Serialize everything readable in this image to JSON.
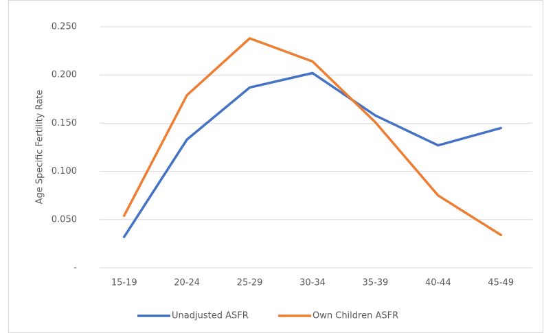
{
  "chart_data": {
    "type": "line",
    "y_label": "Age Specific Fertility Rate",
    "categories": [
      "15-19",
      "20-24",
      "25-29",
      "30-34",
      "35-39",
      "40-44",
      "45-49"
    ],
    "series": [
      {
        "name": "Unadjusted ASFR",
        "color": "#4472c4",
        "values": [
          0.032,
          0.133,
          0.187,
          0.202,
          0.158,
          0.127,
          0.145
        ]
      },
      {
        "name": "Own Children ASFR",
        "color": "#ed7d31",
        "values": [
          0.054,
          0.179,
          0.238,
          0.214,
          0.151,
          0.075,
          0.034
        ]
      }
    ],
    "ylim": [
      0,
      0.25
    ],
    "yticks": [
      {
        "value": 0,
        "label": "-"
      },
      {
        "value": 0.05,
        "label": "0.050"
      },
      {
        "value": 0.1,
        "label": "0.100"
      },
      {
        "value": 0.15,
        "label": "0.150"
      },
      {
        "value": 0.2,
        "label": "0.200"
      },
      {
        "value": 0.25,
        "label": "0.250"
      }
    ],
    "grid": true,
    "legend": "bottom"
  }
}
